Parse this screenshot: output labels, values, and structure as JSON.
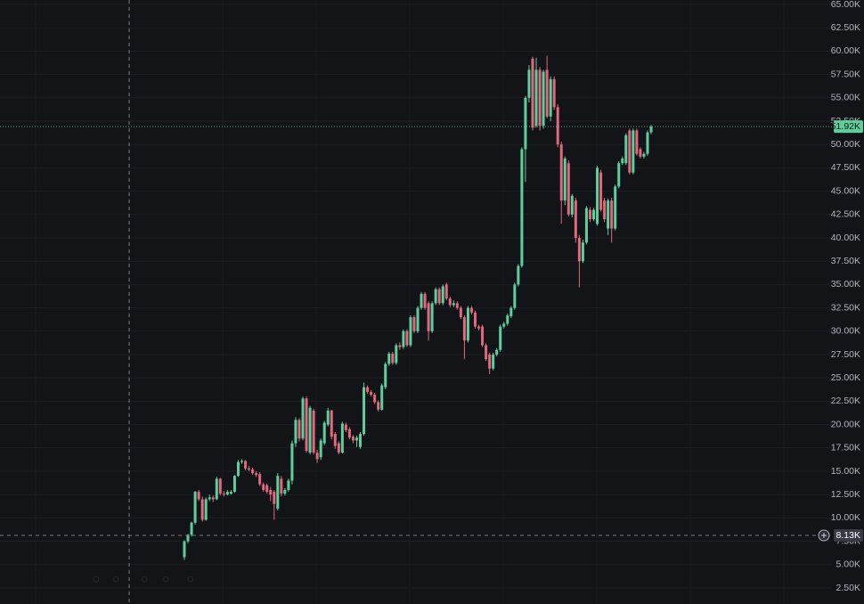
{
  "chart_data": {
    "type": "candlestick",
    "up_color": "#5ccf9c",
    "down_color": "#e0687f",
    "grid": true,
    "open": [
      5800,
      7500,
      8200,
      9500,
      12800,
      12000,
      9800,
      12000,
      12200,
      12000,
      14200,
      12600,
      12500,
      12600,
      12800,
      14500,
      16000,
      16100,
      15300,
      15200,
      14800,
      14700,
      13600,
      13500,
      13000,
      12800,
      11000,
      14200,
      12600,
      13000,
      14000,
      18000,
      20500,
      18500,
      22800,
      17000,
      21500,
      17000,
      16500,
      18000,
      20000,
      21500,
      19000,
      18000,
      17000,
      20000,
      19500,
      18700,
      18300,
      17600,
      19000,
      24000,
      23500,
      23200,
      22400,
      21600,
      24000,
      26500,
      27600,
      26600,
      28500,
      28300,
      30000,
      28500,
      31500,
      30000,
      32500,
      34000,
      33000,
      30000,
      33000,
      34500,
      33000,
      35000,
      33500,
      32800,
      33000,
      32500,
      31500,
      29000,
      32500,
      32000,
      30500,
      30500,
      28500,
      27500,
      26000,
      27500,
      28000,
      30500,
      30800,
      31600,
      32500,
      35000,
      37000,
      49500,
      55000,
      59200,
      52000,
      58000,
      52000,
      58000,
      53000,
      57000,
      54000,
      50000,
      44000,
      48000,
      42500,
      44000,
      40000,
      37500,
      39500,
      43000,
      42000,
      41500,
      47000,
      44000,
      41000,
      44000,
      41000,
      45500,
      48000,
      48000,
      51500,
      47000,
      51500,
      49500,
      48700,
      49000,
      51300
    ],
    "high": [
      7600,
      8300,
      9600,
      12900,
      13000,
      12300,
      12200,
      12500,
      12400,
      14400,
      14300,
      12900,
      13000,
      13000,
      14600,
      16200,
      16300,
      16200,
      15600,
      15400,
      15000,
      14900,
      13800,
      13700,
      13300,
      13000,
      14800,
      14500,
      13200,
      14200,
      18300,
      20800,
      20700,
      23000,
      23000,
      22000,
      21700,
      17300,
      18500,
      20400,
      21800,
      21600,
      19200,
      18200,
      20300,
      20200,
      19700,
      18900,
      18800,
      19200,
      24500,
      24200,
      23700,
      23400,
      22600,
      24400,
      26700,
      27800,
      27800,
      28700,
      28800,
      30200,
      30200,
      31700,
      31700,
      32700,
      34200,
      34200,
      33200,
      33200,
      34700,
      34700,
      35000,
      35200,
      33700,
      33300,
      33200,
      32700,
      31700,
      32700,
      32700,
      32200,
      30700,
      30700,
      28700,
      27700,
      27700,
      28200,
      30700,
      31000,
      31900,
      32700,
      35200,
      37200,
      49700,
      55200,
      58500,
      59400,
      59300,
      58300,
      58000,
      59500,
      57300,
      57300,
      54300,
      50300,
      48700,
      48300,
      44700,
      44300,
      40300,
      39800,
      43400,
      43300,
      43200,
      47700,
      47300,
      44300,
      44200,
      44300,
      45700,
      48200,
      48700,
      51200,
      51700,
      51700,
      51700,
      49700,
      49200,
      51500,
      52100
    ],
    "low": [
      5500,
      7300,
      8000,
      9300,
      11800,
      9600,
      9700,
      11800,
      11700,
      11900,
      12400,
      12300,
      12400,
      12500,
      12700,
      14400,
      15800,
      15100,
      15000,
      14600,
      14400,
      13400,
      12800,
      12600,
      11800,
      9800,
      10800,
      12300,
      12400,
      12800,
      13600,
      17600,
      18200,
      18300,
      17000,
      16800,
      16800,
      15900,
      16200,
      17800,
      19800,
      18400,
      17400,
      16800,
      16900,
      19200,
      18400,
      18000,
      17600,
      17400,
      18800,
      23300,
      23000,
      22200,
      21400,
      21500,
      23800,
      26300,
      26400,
      26400,
      28000,
      28100,
      28300,
      28300,
      29800,
      29800,
      32300,
      32300,
      29000,
      29800,
      32800,
      32800,
      32800,
      33300,
      32600,
      32600,
      32300,
      31300,
      27000,
      28800,
      31800,
      30300,
      30100,
      28300,
      26800,
      25400,
      25800,
      27300,
      27800,
      30300,
      30600,
      31400,
      32300,
      34800,
      36800,
      46000,
      54500,
      51500,
      51800,
      51500,
      51700,
      52800,
      52500,
      53700,
      49700,
      41500,
      43500,
      42300,
      42200,
      39500,
      34700,
      37300,
      39300,
      41700,
      41800,
      41300,
      42800,
      41700,
      40300,
      39500,
      40800,
      45300,
      47800,
      47800,
      46800,
      46800,
      48800,
      48500,
      48500,
      48800,
      51100
    ],
    "close": [
      7500,
      8200,
      9500,
      12800,
      12000,
      9800,
      12000,
      12200,
      12000,
      14200,
      12600,
      12500,
      12800,
      12800,
      14500,
      16000,
      16100,
      15300,
      15200,
      14800,
      14600,
      13600,
      13000,
      12800,
      12500,
      11500,
      14500,
      12600,
      13000,
      14000,
      18000,
      20500,
      18500,
      22800,
      17200,
      21800,
      17000,
      16300,
      18300,
      20200,
      21500,
      18700,
      17700,
      17000,
      20100,
      19400,
      18600,
      18300,
      18600,
      19000,
      24000,
      23500,
      23200,
      22400,
      21600,
      24200,
      26500,
      27600,
      26600,
      28500,
      28300,
      30000,
      28500,
      31500,
      30000,
      32500,
      34000,
      32500,
      30000,
      33000,
      34500,
      33000,
      34800,
      33500,
      32800,
      33000,
      32500,
      31500,
      29000,
      32500,
      32000,
      30500,
      30300,
      28500,
      27000,
      26000,
      27500,
      28000,
      30500,
      30800,
      31700,
      32500,
      35000,
      37000,
      49500,
      55000,
      58000,
      51800,
      58000,
      52000,
      57800,
      53000,
      57000,
      54000,
      50000,
      44000,
      48500,
      42500,
      44500,
      40000,
      37500,
      39500,
      43200,
      42000,
      43000,
      47500,
      43000,
      42000,
      44000,
      41000,
      45500,
      48000,
      48500,
      51000,
      47000,
      51500,
      49000,
      48700,
      49000,
      51300,
      51920
    ],
    "ylim": [
      1250,
      65500
    ],
    "yticks": [
      {
        "value": 2500,
        "label": "2.50K"
      },
      {
        "value": 5000,
        "label": "5.00K"
      },
      {
        "value": 7500,
        "label": "7.50K"
      },
      {
        "value": 10000,
        "label": "10.00K"
      },
      {
        "value": 12500,
        "label": "12.50K"
      },
      {
        "value": 15000,
        "label": "15.00K"
      },
      {
        "value": 17500,
        "label": "17.50K"
      },
      {
        "value": 20000,
        "label": "20.00K"
      },
      {
        "value": 22500,
        "label": "22.50K"
      },
      {
        "value": 25000,
        "label": "25.00K"
      },
      {
        "value": 27500,
        "label": "27.50K"
      },
      {
        "value": 30000,
        "label": "30.00K"
      },
      {
        "value": 32500,
        "label": "32.50K"
      },
      {
        "value": 35000,
        "label": "35.00K"
      },
      {
        "value": 37500,
        "label": "37.50K"
      },
      {
        "value": 40000,
        "label": "40.00K"
      },
      {
        "value": 42500,
        "label": "42.50K"
      },
      {
        "value": 45000,
        "label": "45.00K"
      },
      {
        "value": 47500,
        "label": "47.50K"
      },
      {
        "value": 50000,
        "label": "50.00K"
      },
      {
        "value": 52500,
        "label": "52.50K"
      },
      {
        "value": 55000,
        "label": "55.00K"
      },
      {
        "value": 57500,
        "label": "57.50K"
      },
      {
        "value": 60000,
        "label": "60.00K"
      },
      {
        "value": 62500,
        "label": "62.50K"
      },
      {
        "value": 65000,
        "label": "65.00K"
      }
    ],
    "last_price": {
      "value": 51920,
      "label": "51.92K"
    },
    "crosshair": {
      "value": 8130,
      "label": "8.13K"
    }
  }
}
